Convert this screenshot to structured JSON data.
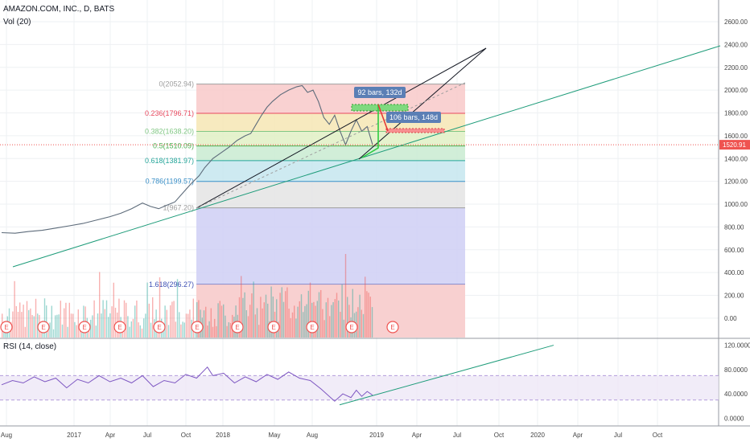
{
  "header": {
    "symbol": "AMAZON.COM, INC., D, BATS",
    "volume_indicator": "Vol (20)",
    "rsi_indicator": "RSI (14, close)"
  },
  "colors": {
    "candle_up": "#26a69a",
    "candle_down": "#ef5350",
    "trend_green": "#1e9c7a",
    "rsi_line": "#7e57c2",
    "price_marker": "#ef5350",
    "label_blue": "#5b7fb5"
  },
  "chart_data": {
    "type": "line",
    "price_axis": {
      "ylim": [
        -170,
        2720
      ],
      "ticks": [
        0,
        200,
        400,
        600,
        800,
        1000,
        1200,
        1400,
        1600,
        1800,
        2000,
        2200,
        2400,
        2600
      ],
      "tick_labels": [
        "0.00",
        "200.00",
        "400.00",
        "600.00",
        "800.00",
        "1000.00",
        "1200.00",
        "1400.00",
        "1600.00",
        "1800.00",
        "2000.00",
        "2200.00",
        "2400.00",
        "2600.00"
      ]
    },
    "rsi_axis": {
      "ylim": [
        -10,
        130
      ],
      "ticks": [
        0,
        40,
        80,
        120
      ],
      "tick_labels": [
        "0.0000",
        "40.0000",
        "80.0000",
        "120.0000"
      ],
      "band": [
        30,
        70
      ]
    },
    "x_axis": {
      "tick_labels": [
        "Aug",
        "2017",
        "Apr",
        "Jul",
        "Oct",
        "2018",
        "May",
        "Aug",
        "2019",
        "Apr",
        "Jul",
        "Oct",
        "2020",
        "Apr",
        "Jul",
        "Oct"
      ]
    },
    "last_price": "1520.91",
    "price_series": [
      [
        0,
        750
      ],
      [
        5,
        745
      ],
      [
        10,
        760
      ],
      [
        15,
        770
      ],
      [
        20,
        790
      ],
      [
        25,
        810
      ],
      [
        30,
        830
      ],
      [
        35,
        860
      ],
      [
        40,
        890
      ],
      [
        44,
        920
      ],
      [
        48,
        960
      ],
      [
        52,
        1010
      ],
      [
        55,
        980
      ],
      [
        58,
        960
      ],
      [
        61,
        990
      ],
      [
        64,
        1020
      ],
      [
        67,
        1100
      ],
      [
        70,
        1180
      ],
      [
        73,
        1250
      ],
      [
        75,
        1320
      ],
      [
        78,
        1400
      ],
      [
        81,
        1450
      ],
      [
        84,
        1500
      ],
      [
        87,
        1560
      ],
      [
        90,
        1600
      ],
      [
        92,
        1620
      ],
      [
        94,
        1700
      ],
      [
        96,
        1780
      ],
      [
        98,
        1850
      ],
      [
        100,
        1900
      ],
      [
        103,
        1960
      ],
      [
        106,
        2000
      ],
      [
        109,
        2030
      ],
      [
        111,
        2040
      ],
      [
        113,
        1980
      ],
      [
        115,
        2000
      ],
      [
        117,
        1900
      ],
      [
        119,
        1760
      ],
      [
        121,
        1700
      ],
      [
        123,
        1780
      ],
      [
        125,
        1640
      ],
      [
        127,
        1520
      ],
      [
        129,
        1640
      ],
      [
        131,
        1740
      ],
      [
        133,
        1640
      ],
      [
        135,
        1680
      ],
      [
        137,
        1520
      ]
    ],
    "rsi_series": [
      [
        0,
        55
      ],
      [
        4,
        62
      ],
      [
        8,
        58
      ],
      [
        12,
        68
      ],
      [
        16,
        60
      ],
      [
        20,
        66
      ],
      [
        24,
        50
      ],
      [
        28,
        64
      ],
      [
        32,
        58
      ],
      [
        36,
        70
      ],
      [
        40,
        60
      ],
      [
        44,
        66
      ],
      [
        48,
        58
      ],
      [
        52,
        70
      ],
      [
        56,
        52
      ],
      [
        60,
        62
      ],
      [
        64,
        58
      ],
      [
        68,
        72
      ],
      [
        72,
        66
      ],
      [
        76,
        84
      ],
      [
        78,
        70
      ],
      [
        82,
        74
      ],
      [
        86,
        58
      ],
      [
        90,
        68
      ],
      [
        94,
        60
      ],
      [
        98,
        72
      ],
      [
        102,
        64
      ],
      [
        106,
        76
      ],
      [
        110,
        66
      ],
      [
        114,
        62
      ],
      [
        118,
        48
      ],
      [
        121,
        36
      ],
      [
        123,
        28
      ],
      [
        126,
        40
      ],
      [
        129,
        34
      ],
      [
        131,
        46
      ],
      [
        133,
        36
      ],
      [
        135,
        44
      ],
      [
        137,
        38
      ]
    ],
    "fibonacci": {
      "levels": [
        "0(2052.94)",
        "0.236(1796.71)",
        "0.382(1638.20)",
        "0.5(1510.09)",
        "0.618(1381.97)",
        "0.786(1199.57)",
        "1(967.20)",
        "1.618(296.27)"
      ],
      "values": [
        2052.94,
        1796.71,
        1638.2,
        1510.09,
        1381.97,
        1199.57,
        967.2,
        296.27
      ],
      "colors": [
        "#9e9e9e",
        "#e84a5f",
        "#81c784",
        "#4caf50",
        "#26a69a",
        "#3a8fc7",
        "#9e9e9e",
        "#3f51b5"
      ]
    },
    "annotations": [
      "92 bars, 132d",
      "106 bars, 148d"
    ],
    "earnings_marker": "E"
  }
}
